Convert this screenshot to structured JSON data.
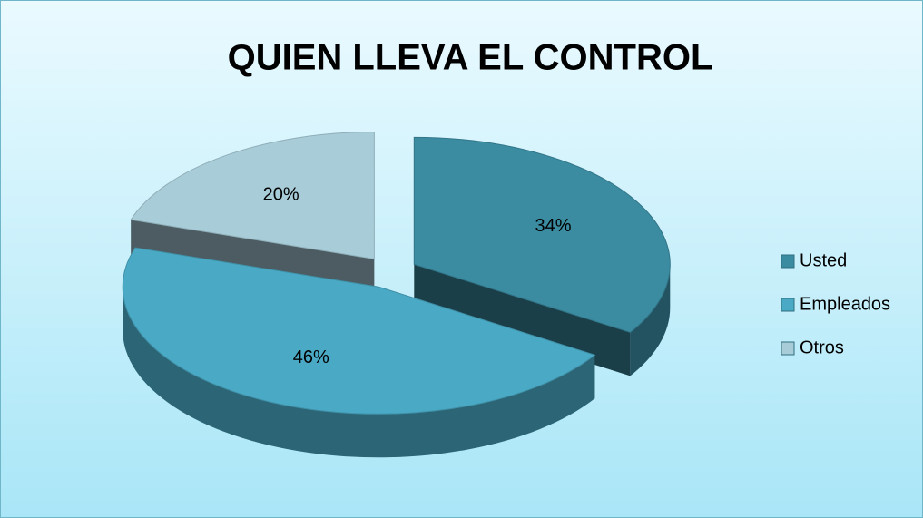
{
  "chart_data": {
    "type": "pie",
    "title": "QUIEN LLEVA EL CONTROL",
    "categories": [
      "Usted",
      "Empleados",
      "Otros"
    ],
    "values": [
      34,
      46,
      20
    ],
    "value_labels": [
      "34%",
      "46%",
      "20%"
    ],
    "colors": [
      "#3b8ba1",
      "#4aa9c5",
      "#a8cdd9"
    ],
    "legend": "right"
  }
}
